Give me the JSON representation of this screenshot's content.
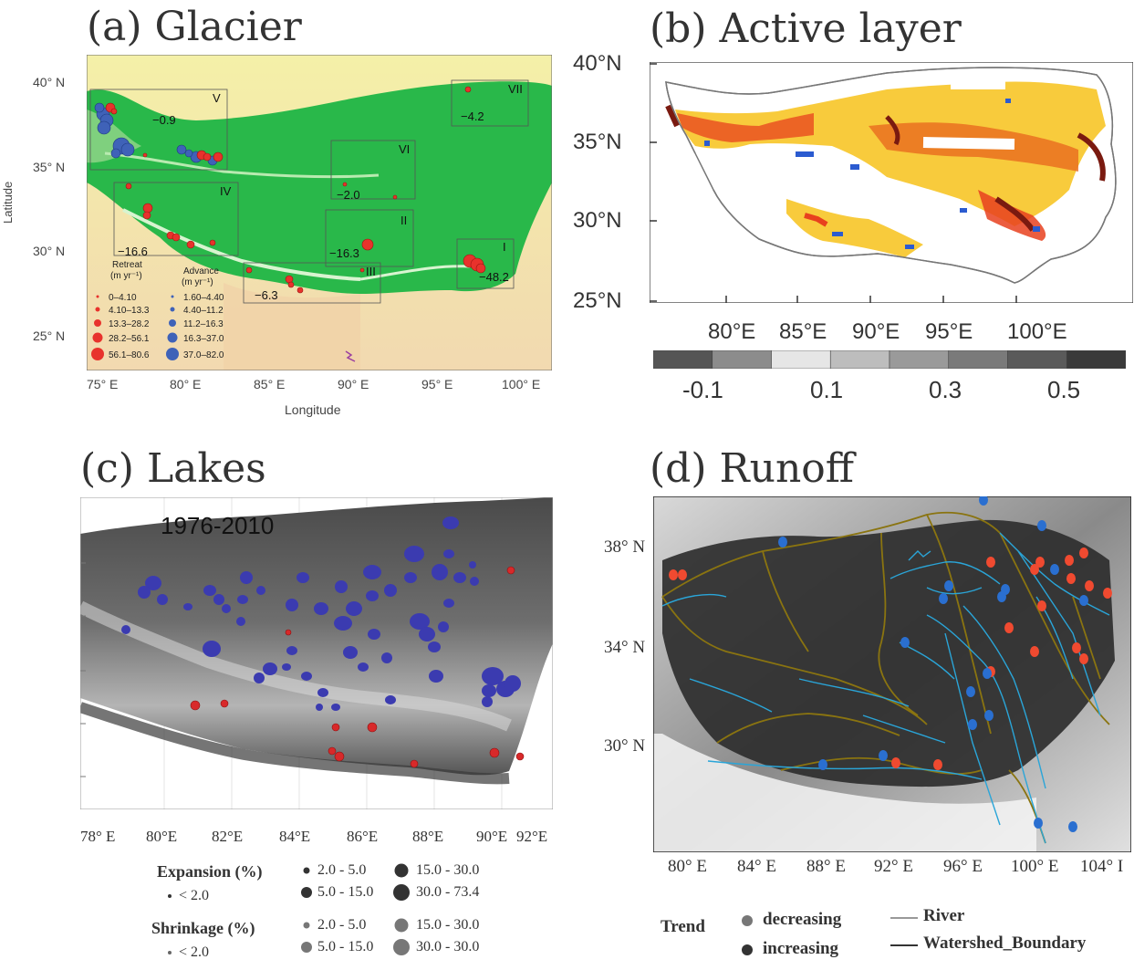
{
  "colors": {
    "retreat": "#e8322c",
    "advance": "#3f62b8",
    "lake_expand": "#3b3bb0",
    "lake_shrink": "#d8292a",
    "runoff_dec": "#f04a30",
    "runoff_inc": "#2a6fd0",
    "river": "#2aa5d8",
    "watershed": "#8a7410"
  },
  "panel_a": {
    "title": "(a) Glacier",
    "lat_ticks": [
      "40° N",
      "35° N",
      "30° N",
      "25° N"
    ],
    "lon_ticks": [
      "75° E",
      "80° E",
      "85° E",
      "90° E",
      "95° E",
      "100° E"
    ],
    "xlabel": "Longitude",
    "ylabel": "Latitude",
    "regions": [
      {
        "id": "V",
        "value": "-0.9"
      },
      {
        "id": "VI",
        "value": "-2.0"
      },
      {
        "id": "VII",
        "value": "-4.2"
      },
      {
        "id": "IV",
        "value": "-16.6"
      },
      {
        "id": "II",
        "value": "-16.3"
      },
      {
        "id": "III",
        "value": "-6.3"
      },
      {
        "id": "I",
        "value": "-48.2"
      }
    ],
    "legend": {
      "retreat_title": "Retreat",
      "retreat_unit": "(m yr⁻¹)",
      "advance_title": "Advance",
      "advance_unit": "(m yr⁻¹)",
      "retreat_classes": [
        "0–4.10",
        "4.10–13.3",
        "13.3–28.2",
        "28.2–56.1",
        "56.1–80.6"
      ],
      "advance_classes": [
        "1.60–4.40",
        "4.40–11.2",
        "11.2–16.3",
        "16.3–37.0",
        "37.0–82.0"
      ]
    }
  },
  "panel_b": {
    "title": "(b) Active layer",
    "lat_ticks": [
      "40°N",
      "35°N",
      "30°N",
      "25°N"
    ],
    "lon_ticks": [
      "80°E",
      "85°E",
      "90°E",
      "95°E",
      "100°E"
    ],
    "colorbar_labels": [
      "-0.1",
      "0.1",
      "0.3",
      "0.5"
    ],
    "colorbar_colors": [
      "#555555",
      "#8c8c8c",
      "#e6e6e6",
      "#bdbdbd",
      "#9a9a9a",
      "#7a7a7a",
      "#5a5a5a",
      "#3a3a3a"
    ]
  },
  "panel_c": {
    "title": "(c) Lakes",
    "period": "1976-2010",
    "lon_ticks": [
      "78° E",
      "80°E",
      "82°E",
      "84°E",
      "86°E",
      "88°E",
      "90°E",
      "92°E"
    ],
    "legend": {
      "expansion_title": "Expansion (%)",
      "shrinkage_title": "Shrinkage (%)",
      "expansion_classes": [
        "< 2.0",
        "2.0 - 5.0",
        "5.0 - 15.0",
        "15.0 - 30.0",
        "30.0 - 73.4"
      ],
      "shrinkage_classes": [
        "< 2.0",
        "2.0 - 5.0",
        "5.0 - 15.0",
        "15.0 - 30.0",
        "30.0 - 30.0"
      ]
    }
  },
  "panel_d": {
    "title": "(d) Runoff",
    "lat_ticks": [
      "38° N",
      "34° N",
      "30° N"
    ],
    "lon_ticks": [
      "80° E",
      "84° E",
      "88° E",
      "92° E",
      "96° E",
      "100° E",
      "104° I"
    ],
    "legend": {
      "trend_title": "Trend",
      "decreasing": "decreasing",
      "increasing": "increasing",
      "river": "River",
      "watershed": "Watershed_Boundary"
    }
  }
}
